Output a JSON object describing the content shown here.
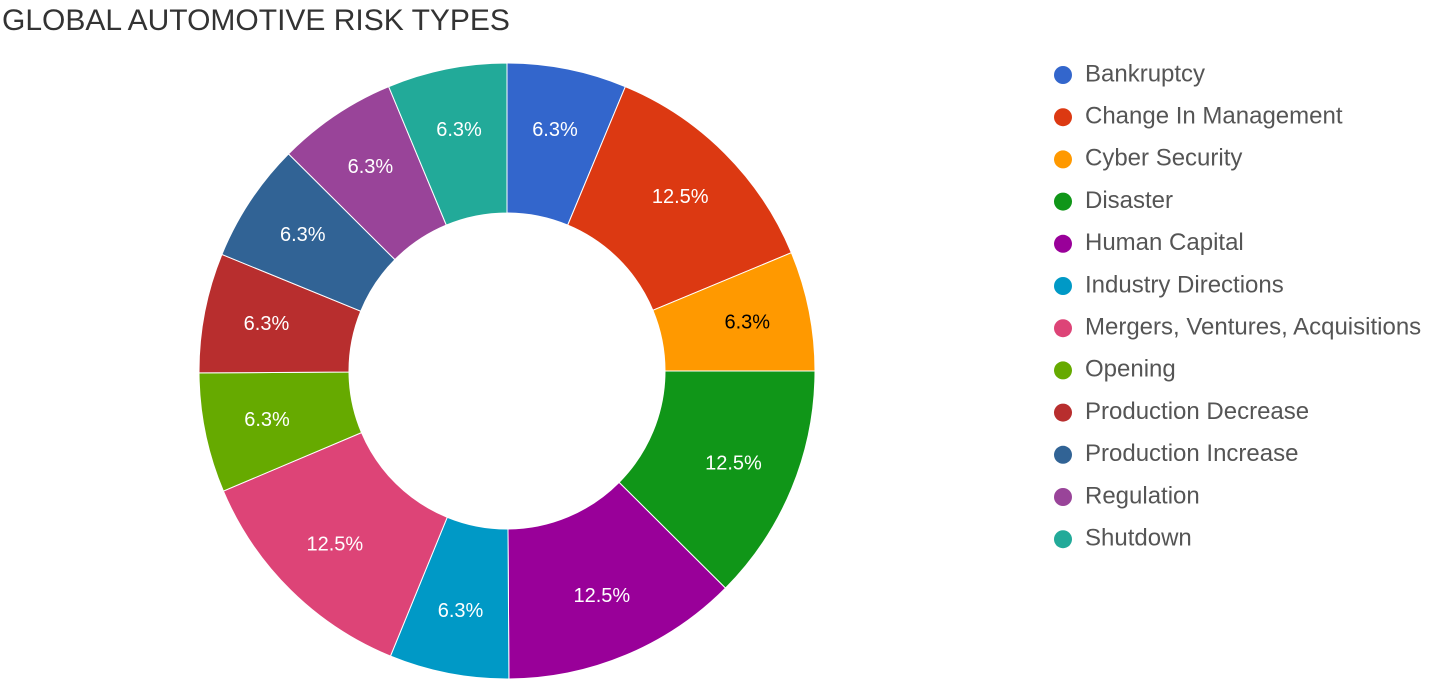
{
  "chart_data": {
    "type": "donut",
    "title": "GLOBAL AUTOMOTIVE RISK TYPES",
    "categories": [
      "Bankruptcy",
      "Change In Management",
      "Cyber Security",
      "Disaster",
      "Human Capital",
      "Industry Directions",
      "Mergers, Ventures, Acquisitions",
      "Opening",
      "Production Decrease",
      "Production Increase",
      "Regulation",
      "Shutdown"
    ],
    "values": [
      6.3,
      12.5,
      6.3,
      12.5,
      12.5,
      6.3,
      12.5,
      6.3,
      6.3,
      6.3,
      6.3,
      6.3
    ],
    "value_labels": [
      "6.3%",
      "12.5%",
      "6.3%",
      "12.5%",
      "12.5%",
      "6.3%",
      "12.5%",
      "6.3%",
      "6.3%",
      "6.3%",
      "6.3%",
      "6.3%"
    ],
    "colors": [
      "#3366cc",
      "#dc3912",
      "#ff9900",
      "#109618",
      "#990099",
      "#0099c6",
      "#dd4477",
      "#66aa00",
      "#b82e2e",
      "#316395",
      "#994499",
      "#22aa99"
    ],
    "legend": "right"
  }
}
